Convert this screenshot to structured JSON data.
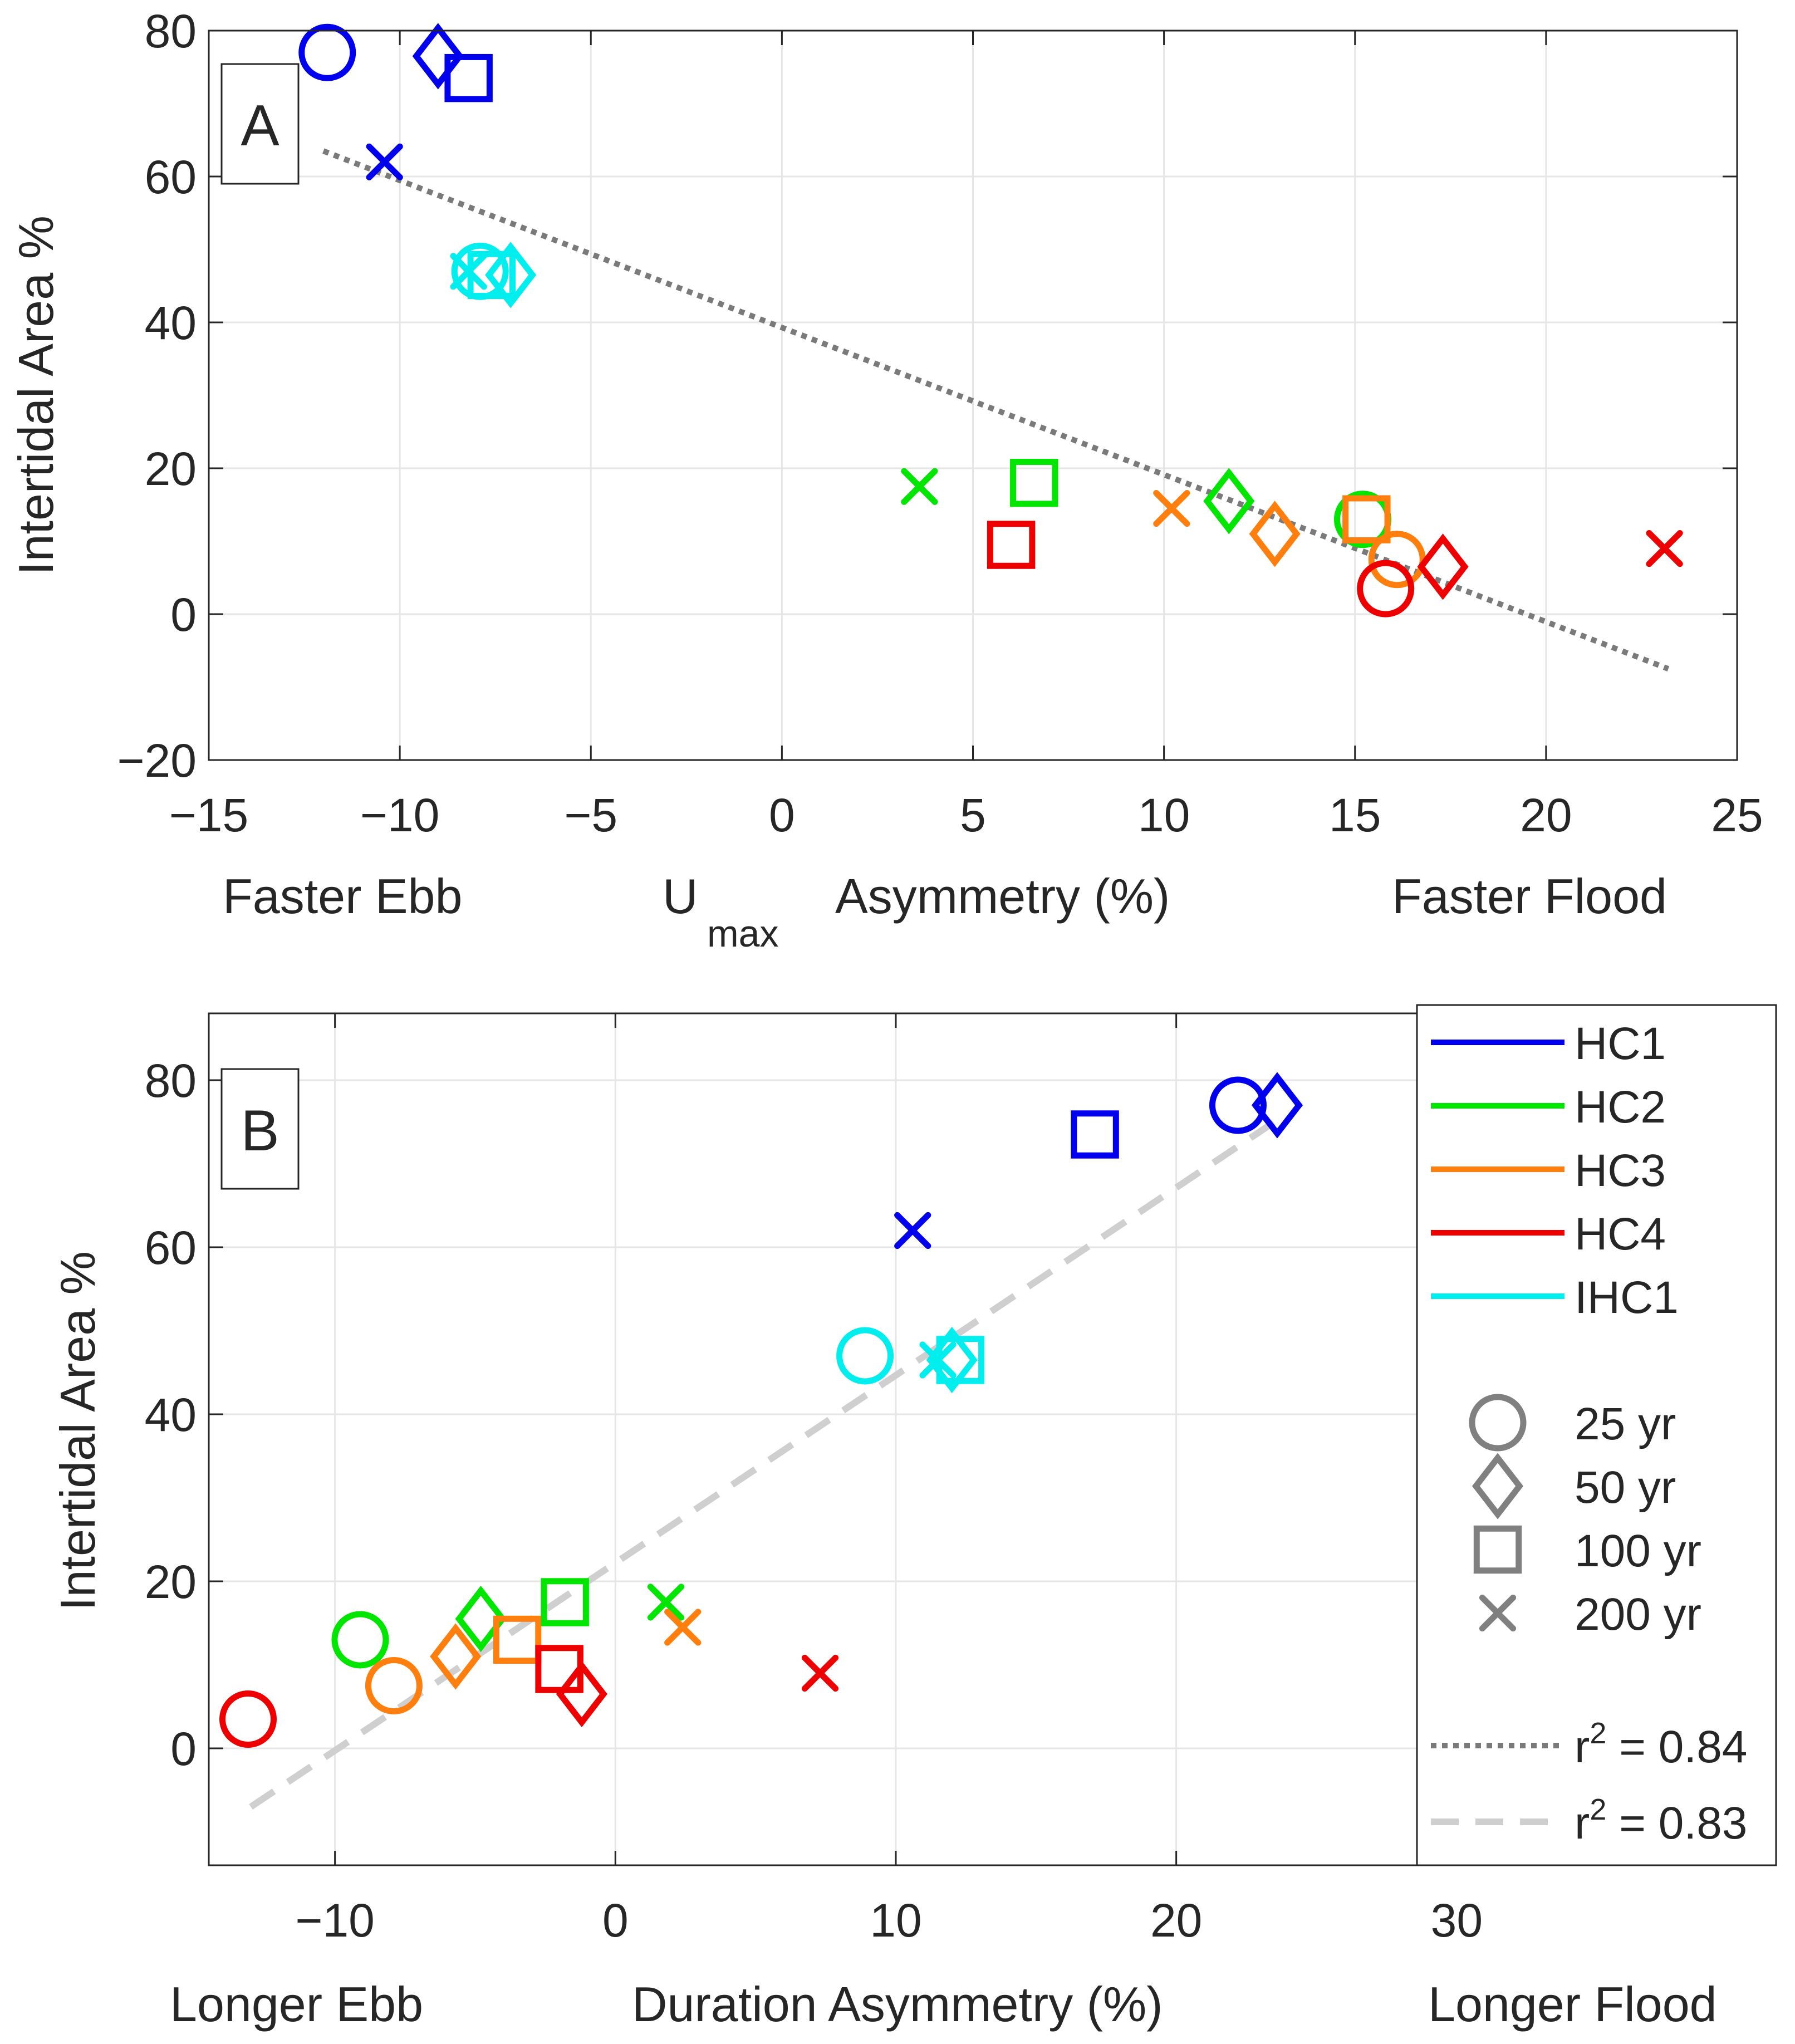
{
  "colors": {
    "HC1": "#0000ee",
    "HC2": "#00e600",
    "HC3": "#ff7f0e",
    "HC4": "#ee0000",
    "IHC1": "#00eeee",
    "legend_marker": "#808080",
    "fit_dotted": "#7a7a7a",
    "fit_dashed": "#cfcfcf",
    "grid": "#e6e6e6",
    "axis": "#262626"
  },
  "legend": {
    "series": [
      {
        "key": "HC1",
        "label": "HC1"
      },
      {
        "key": "HC2",
        "label": "HC2"
      },
      {
        "key": "HC3",
        "label": "HC3"
      },
      {
        "key": "HC4",
        "label": "HC4"
      },
      {
        "key": "IHC1",
        "label": "IHC1"
      }
    ],
    "markers": [
      {
        "shape": "circle",
        "label": "25 yr"
      },
      {
        "shape": "diamond",
        "label": "50 yr"
      },
      {
        "shape": "square",
        "label": "100 yr"
      },
      {
        "shape": "x",
        "label": "200 yr"
      }
    ],
    "fits": [
      {
        "style": "dotted",
        "prefix": "r",
        "sup": "2",
        "suffix": " = 0.84"
      },
      {
        "style": "dashed",
        "prefix": "r",
        "sup": "2",
        "suffix": " = 0.83"
      }
    ]
  },
  "chart_data": [
    {
      "type": "scatter",
      "panel_label": "A",
      "xlabel_main": "U",
      "xlabel_sub": "max",
      "xlabel_rest": "Asymmetry (%)",
      "xlabel_left": "Faster Ebb",
      "xlabel_right": "Faster Flood",
      "ylabel": "Intertidal Area %",
      "xlim": [
        -15,
        25
      ],
      "ylim": [
        -20,
        80
      ],
      "xticks": [
        -15,
        -10,
        -5,
        0,
        5,
        10,
        15,
        20,
        25
      ],
      "yticks": [
        -20,
        0,
        20,
        40,
        60,
        80
      ],
      "xtick_labels": [
        "−15",
        "−10",
        "−5",
        "0",
        "5",
        "10",
        "15",
        "20",
        "25"
      ],
      "ytick_labels": [
        "−20",
        "0",
        "20",
        "40",
        "60",
        "80"
      ],
      "grid": true,
      "fit": {
        "style": "dotted",
        "x": [
          -12,
          23.2
        ],
        "y": [
          63.5,
          -7.5
        ]
      },
      "points": [
        {
          "series": "HC1",
          "marker": "circle",
          "x": -11.9,
          "y": 77
        },
        {
          "series": "HC1",
          "marker": "diamond",
          "x": -9.0,
          "y": 76.5
        },
        {
          "series": "HC1",
          "marker": "square",
          "x": -8.2,
          "y": 73.5
        },
        {
          "series": "HC1",
          "marker": "x",
          "x": -10.4,
          "y": 62
        },
        {
          "series": "IHC1",
          "marker": "x",
          "x": -8.2,
          "y": 47
        },
        {
          "series": "IHC1",
          "marker": "circle",
          "x": -7.9,
          "y": 47
        },
        {
          "series": "IHC1",
          "marker": "square",
          "x": -7.6,
          "y": 46.5
        },
        {
          "series": "IHC1",
          "marker": "diamond",
          "x": -7.1,
          "y": 46.5
        },
        {
          "series": "HC2",
          "marker": "x",
          "x": 3.6,
          "y": 17.5
        },
        {
          "series": "HC2",
          "marker": "square",
          "x": 6.6,
          "y": 18
        },
        {
          "series": "HC2",
          "marker": "diamond",
          "x": 11.7,
          "y": 15.5
        },
        {
          "series": "HC2",
          "marker": "circle",
          "x": 15.2,
          "y": 13
        },
        {
          "series": "HC4",
          "marker": "square",
          "x": 6.0,
          "y": 9.5
        },
        {
          "series": "HC3",
          "marker": "x",
          "x": 10.2,
          "y": 14.5
        },
        {
          "series": "HC3",
          "marker": "diamond",
          "x": 12.9,
          "y": 11
        },
        {
          "series": "HC3",
          "marker": "square",
          "x": 15.3,
          "y": 13
        },
        {
          "series": "HC3",
          "marker": "circle",
          "x": 16.1,
          "y": 7.5
        },
        {
          "series": "HC4",
          "marker": "circle",
          "x": 15.8,
          "y": 3.5
        },
        {
          "series": "HC4",
          "marker": "diamond",
          "x": 17.3,
          "y": 6.5
        },
        {
          "series": "HC4",
          "marker": "x",
          "x": 23.1,
          "y": 9
        }
      ]
    },
    {
      "type": "scatter",
      "panel_label": "B",
      "xlabel": "Duration Asymmetry (%)",
      "xlabel_left": "Longer Ebb",
      "xlabel_right": "Longer Flood",
      "ylabel": "Intertidal Area %",
      "xlim": [
        -14.5,
        40
      ],
      "ylim": [
        -14,
        88
      ],
      "xticks": [
        -10,
        0,
        10,
        20,
        30
      ],
      "yticks": [
        0,
        20,
        40,
        60,
        80
      ],
      "xtick_labels": [
        "−10",
        "0",
        "10",
        "20",
        "30"
      ],
      "ytick_labels": [
        "0",
        "20",
        "40",
        "60",
        "80"
      ],
      "grid": true,
      "fit": {
        "style": "dashed",
        "x": [
          -13,
          23.5
        ],
        "y": [
          -7,
          75
        ]
      },
      "points": [
        {
          "series": "HC4",
          "marker": "circle",
          "x": -13.1,
          "y": 3.5
        },
        {
          "series": "HC2",
          "marker": "circle",
          "x": -9.1,
          "y": 13
        },
        {
          "series": "HC3",
          "marker": "circle",
          "x": -7.9,
          "y": 7.5
        },
        {
          "series": "HC3",
          "marker": "diamond",
          "x": -5.7,
          "y": 11
        },
        {
          "series": "HC2",
          "marker": "diamond",
          "x": -4.8,
          "y": 15.5
        },
        {
          "series": "HC3",
          "marker": "square",
          "x": -3.5,
          "y": 13
        },
        {
          "series": "HC2",
          "marker": "square",
          "x": -1.8,
          "y": 17.5
        },
        {
          "series": "HC4",
          "marker": "square",
          "x": -2.0,
          "y": 9.5
        },
        {
          "series": "HC4",
          "marker": "diamond",
          "x": -1.2,
          "y": 6.5
        },
        {
          "series": "HC2",
          "marker": "x",
          "x": 1.8,
          "y": 17.5
        },
        {
          "series": "HC3",
          "marker": "x",
          "x": 2.4,
          "y": 14.5
        },
        {
          "series": "HC4",
          "marker": "x",
          "x": 7.3,
          "y": 9
        },
        {
          "series": "IHC1",
          "marker": "circle",
          "x": 8.9,
          "y": 47
        },
        {
          "series": "HC1",
          "marker": "x",
          "x": 10.6,
          "y": 62
        },
        {
          "series": "IHC1",
          "marker": "x",
          "x": 11.5,
          "y": 46.5
        },
        {
          "series": "IHC1",
          "marker": "diamond",
          "x": 12.0,
          "y": 46.5
        },
        {
          "series": "IHC1",
          "marker": "square",
          "x": 12.3,
          "y": 46.5
        },
        {
          "series": "HC1",
          "marker": "square",
          "x": 17.1,
          "y": 73.5
        },
        {
          "series": "HC1",
          "marker": "circle",
          "x": 22.2,
          "y": 77
        },
        {
          "series": "HC1",
          "marker": "diamond",
          "x": 23.6,
          "y": 77
        }
      ]
    }
  ]
}
